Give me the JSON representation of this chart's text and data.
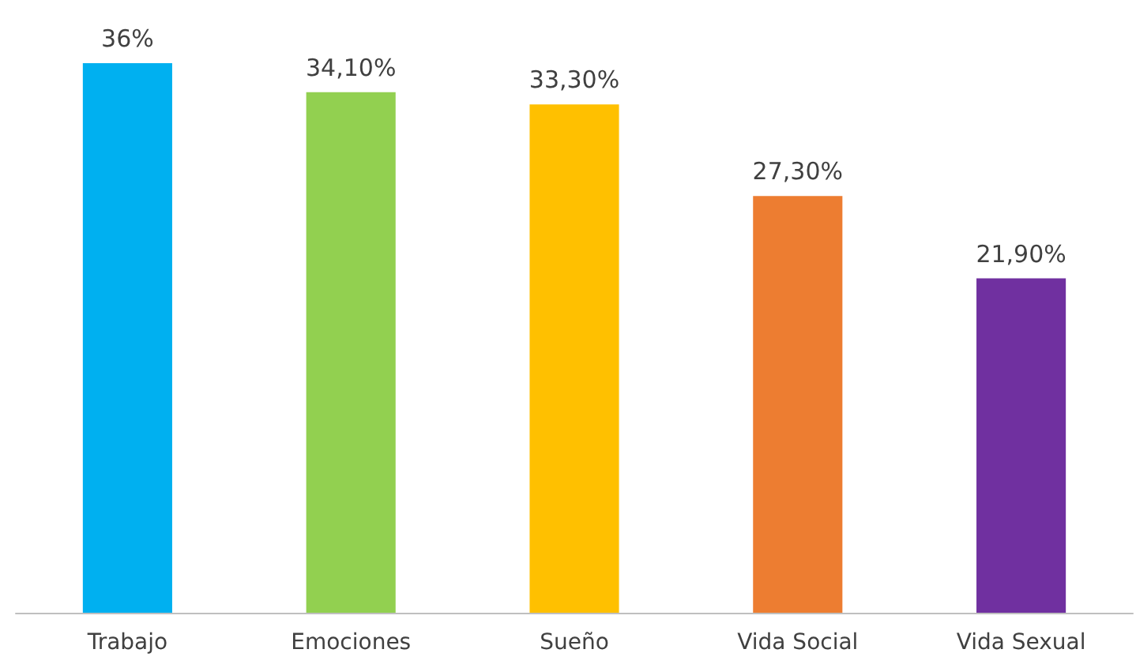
{
  "chart_data": {
    "type": "bar",
    "categories": [
      "Trabajo",
      "Emociones",
      "Sueño",
      "Vida Social",
      "Vida Sexual"
    ],
    "values": [
      36,
      34.1,
      33.3,
      27.3,
      21.9
    ],
    "colors": [
      "#00b0f0",
      "#92d050",
      "#ffc000",
      "#ed7d31",
      "#7030a0"
    ],
    "value_labels": [
      "36%",
      "34,10%",
      "33,30%",
      "27,30%",
      "21,90%"
    ]
  }
}
